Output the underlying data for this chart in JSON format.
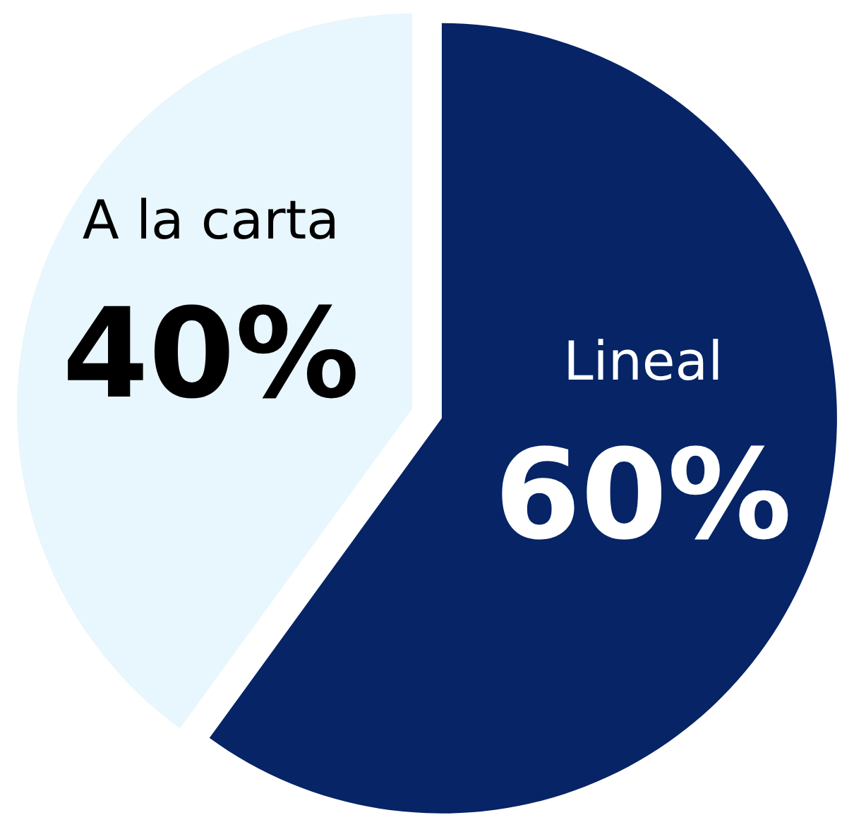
{
  "chart_data": {
    "type": "pie",
    "categories": [
      "Lineal",
      "A la carta"
    ],
    "values": [
      60,
      40
    ],
    "colors": [
      "#062466",
      "#e8f6fd"
    ],
    "value_labels": [
      "60%",
      "40%"
    ]
  }
}
